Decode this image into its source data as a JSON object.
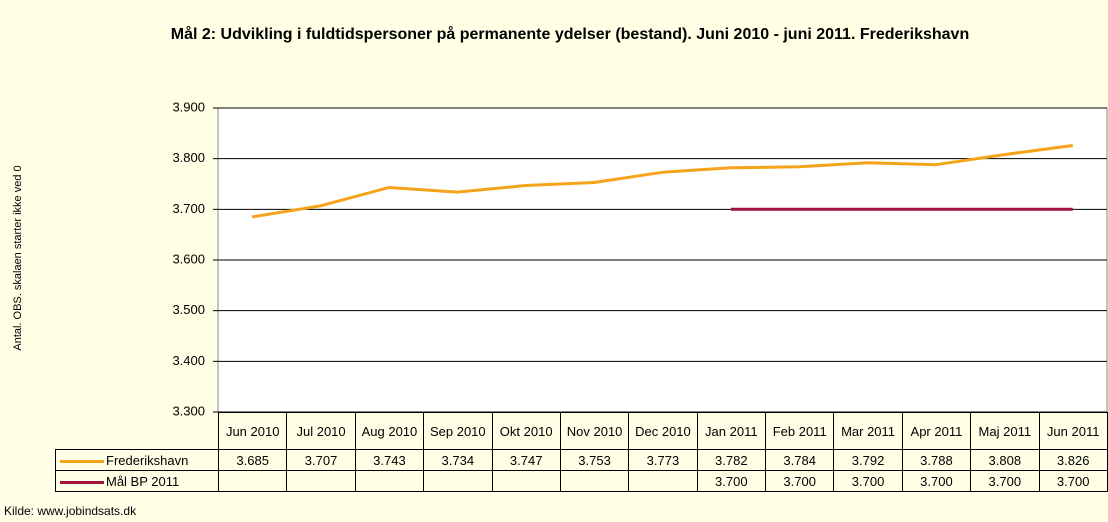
{
  "chart_data": {
    "type": "line",
    "title": "Mål 2: Udvikling i fuldtidspersoner på permanente ydelser (bestand). Juni 2010 - juni 2011. Frederikshavn",
    "y_axis_label": "Antal. OBS. skalaen starter ikke ved 0",
    "source": "Kilde: www.jobindsats.dk",
    "categories": [
      "Jun 2010",
      "Jul 2010",
      "Aug 2010",
      "Sep 2010",
      "Okt 2010",
      "Nov 2010",
      "Dec 2010",
      "Jan 2011",
      "Feb 2011",
      "Mar 2011",
      "Apr 2011",
      "Maj 2011",
      "Jun 2011"
    ],
    "series": [
      {
        "name": "Frederikshavn",
        "color": "#F5A31A",
        "values": [
          3685,
          3707,
          3743,
          3734,
          3747,
          3753,
          3773,
          3782,
          3784,
          3792,
          3788,
          3808,
          3826
        ],
        "value_labels": [
          "3.685",
          "3.707",
          "3.743",
          "3.734",
          "3.747",
          "3.753",
          "3.773",
          "3.782",
          "3.784",
          "3.792",
          "3.788",
          "3.808",
          "3.826"
        ]
      },
      {
        "name": "Mål BP 2011",
        "color": "#A3123F",
        "values": [
          null,
          null,
          null,
          null,
          null,
          null,
          null,
          3700,
          3700,
          3700,
          3700,
          3700,
          3700
        ],
        "value_labels": [
          null,
          null,
          null,
          null,
          null,
          null,
          null,
          "3.700",
          "3.700",
          "3.700",
          "3.700",
          "3.700",
          "3.700"
        ]
      }
    ],
    "ylim": [
      3300,
      3900
    ],
    "yticks": [
      {
        "value": 3300,
        "label": "3.300"
      },
      {
        "value": 3400,
        "label": "3.400"
      },
      {
        "value": 3500,
        "label": "3.500"
      },
      {
        "value": 3600,
        "label": "3.600"
      },
      {
        "value": 3700,
        "label": "3.700"
      },
      {
        "value": 3800,
        "label": "3.800"
      },
      {
        "value": 3900,
        "label": "3.900"
      }
    ],
    "grid": true,
    "legend": "table"
  }
}
